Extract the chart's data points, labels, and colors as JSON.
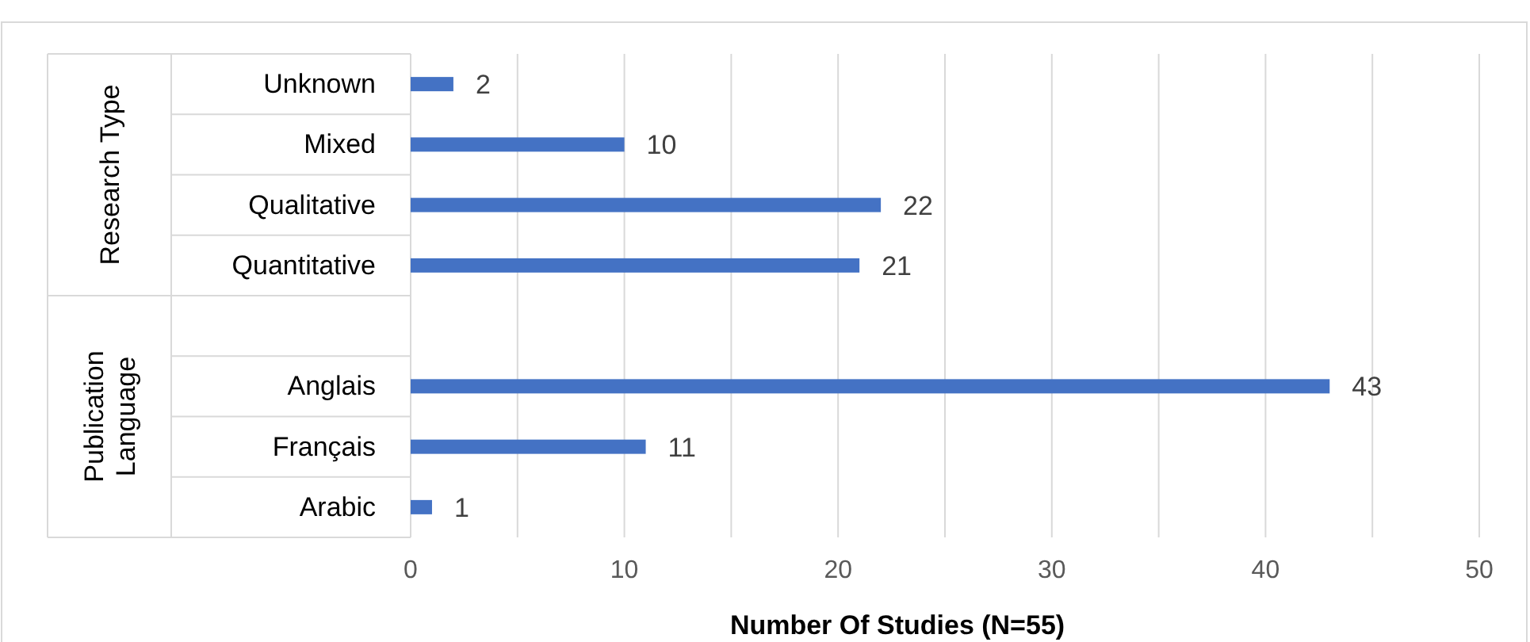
{
  "chart_data": {
    "type": "bar",
    "orientation": "horizontal",
    "categories": [
      "Unknown",
      "Mixed",
      "Qualitative",
      "Quantitative",
      null,
      "Anglais",
      "Français",
      "Arabic"
    ],
    "values": [
      2,
      10,
      22,
      21,
      null,
      43,
      11,
      1
    ],
    "color": "#4472c4",
    "xlim": [
      0,
      50
    ],
    "xticks": [
      0,
      {
        "value": 5,
        "label": null
      },
      10,
      {
        "value": 15,
        "label": null
      },
      20,
      {
        "value": 25,
        "label": null
      },
      30,
      {
        "value": 35,
        "label": null
      },
      40,
      {
        "value": 45,
        "label": null
      },
      50
    ],
    "xlabel": "Number Of Studies  (N=55)",
    "annotations": [
      "Research Type",
      "Publication\nLanguage"
    ],
    "grid": "x",
    "data_labels": true
  }
}
